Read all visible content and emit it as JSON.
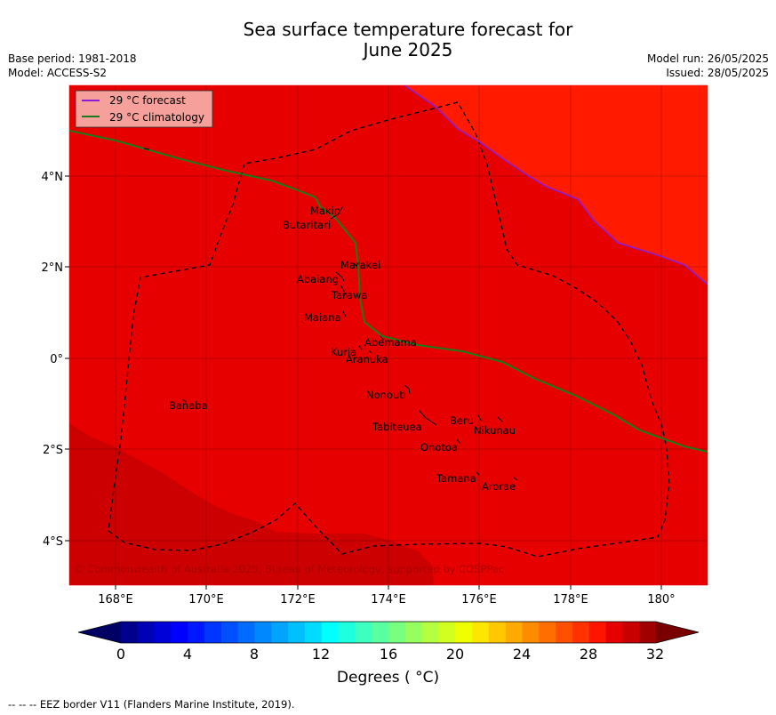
{
  "header": {
    "title_line1": "Sea surface temperature forecast for",
    "title_line2": "June 2025",
    "base_period": "Base period: 1981-2018",
    "model": "Model: ACCESS-S2",
    "model_run": "Model run: 26/05/2025",
    "issued": "Issued: 28/05/2025"
  },
  "map": {
    "x_ticks": [
      "168°E",
      "170°E",
      "172°E",
      "174°E",
      "176°E",
      "178°E",
      "180°"
    ],
    "y_ticks": [
      "4°N",
      "2°N",
      "0°",
      "2°S",
      "4°S"
    ],
    "legend": {
      "forecast_label": "29 °C  forecast",
      "climatology_label": "29 °C  climatology",
      "forecast_color": "#8b1bd6",
      "climatology_color": "#1b7a1b"
    },
    "islands": [
      "Makin",
      "Butaritari",
      "Marakei",
      "Abaiang",
      "Tarawa",
      "Maiana",
      "Abemama",
      "Kuria",
      "Aranuka",
      "Nonouti",
      "Banaba",
      "Tabiteuea",
      "Beru",
      "Nikunau",
      "Onotoa",
      "Tamana",
      "Arorae"
    ],
    "copyright": "© Commonwealth of Australia 2025, Bureau of Meteorology, supported by COSPPac",
    "region_colors": {
      "main": "#e60000",
      "warm": "#ff1a00",
      "cool": "#cc0000"
    }
  },
  "colorbar": {
    "tick_labels": [
      "0",
      "4",
      "8",
      "12",
      "16",
      "20",
      "24",
      "28",
      "32"
    ],
    "label": "Degrees ( °C)",
    "colors": [
      "#00008c",
      "#0000b4",
      "#0000d8",
      "#0000ff",
      "#0018ff",
      "#0034ff",
      "#0050ff",
      "#006cff",
      "#0088ff",
      "#00a4ff",
      "#00c0ff",
      "#00dcff",
      "#00ffff",
      "#1effe0",
      "#3cffc0",
      "#5affa0",
      "#78ff80",
      "#96ff60",
      "#b4ff40",
      "#d2ff20",
      "#f0ff00",
      "#ffe600",
      "#ffc800",
      "#ffaa00",
      "#ff8c00",
      "#ff6e00",
      "#ff5000",
      "#ff3200",
      "#ff1400",
      "#e60000",
      "#c80000",
      "#a00000"
    ],
    "under_color": "#000064",
    "over_color": "#7a0000"
  },
  "footer": {
    "eez_note": "--  --  -- EEZ border V11 (Flanders Marine Institute, 2019)."
  }
}
